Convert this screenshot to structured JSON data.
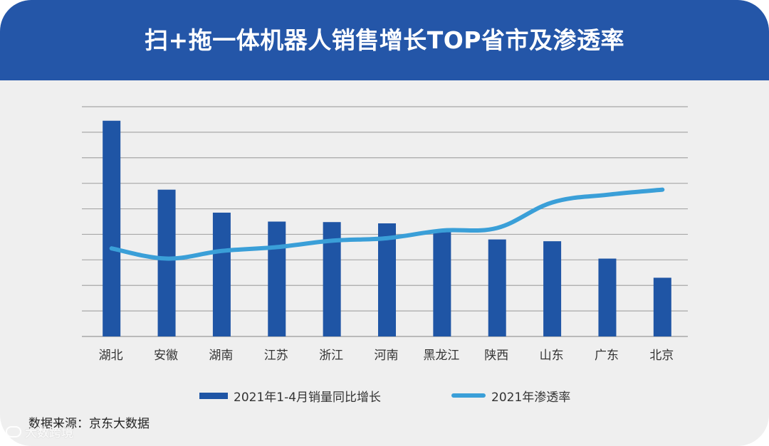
{
  "header": {
    "title": "扫+拖一体机器人销售增长TOP省市及渗透率"
  },
  "chart_data": {
    "type": "bar+line",
    "categories": [
      "湖北",
      "安徽",
      "湖南",
      "江苏",
      "浙江",
      "河南",
      "黑龙江",
      "陕西",
      "山东",
      "广东",
      "北京"
    ],
    "series": [
      {
        "name": "2021年1-4月销量同比增长",
        "type": "bar",
        "values": [
          84.5,
          57.5,
          48.5,
          45.0,
          44.8,
          44.3,
          41.0,
          38.0,
          37.3,
          30.5,
          23.0
        ]
      },
      {
        "name": "2021年渗透率",
        "type": "line",
        "values": [
          34.5,
          30.5,
          33.5,
          35.0,
          37.5,
          38.5,
          41.5,
          42.5,
          52.5,
          55.5,
          57.5
        ]
      }
    ],
    "ylim": [
      0,
      90
    ],
    "grid": true,
    "y_tick_labels_visible": false,
    "legend_position": "bottom",
    "colors": {
      "bar": "#1f55a5",
      "line": "#3a9fd8"
    }
  },
  "legend": {
    "bar_label": "2021年1-4月销量同比增长",
    "line_label": "2021年渗透率"
  },
  "footer": {
    "source": "数据来源：京东大数据",
    "watermark": "大数跨境"
  }
}
